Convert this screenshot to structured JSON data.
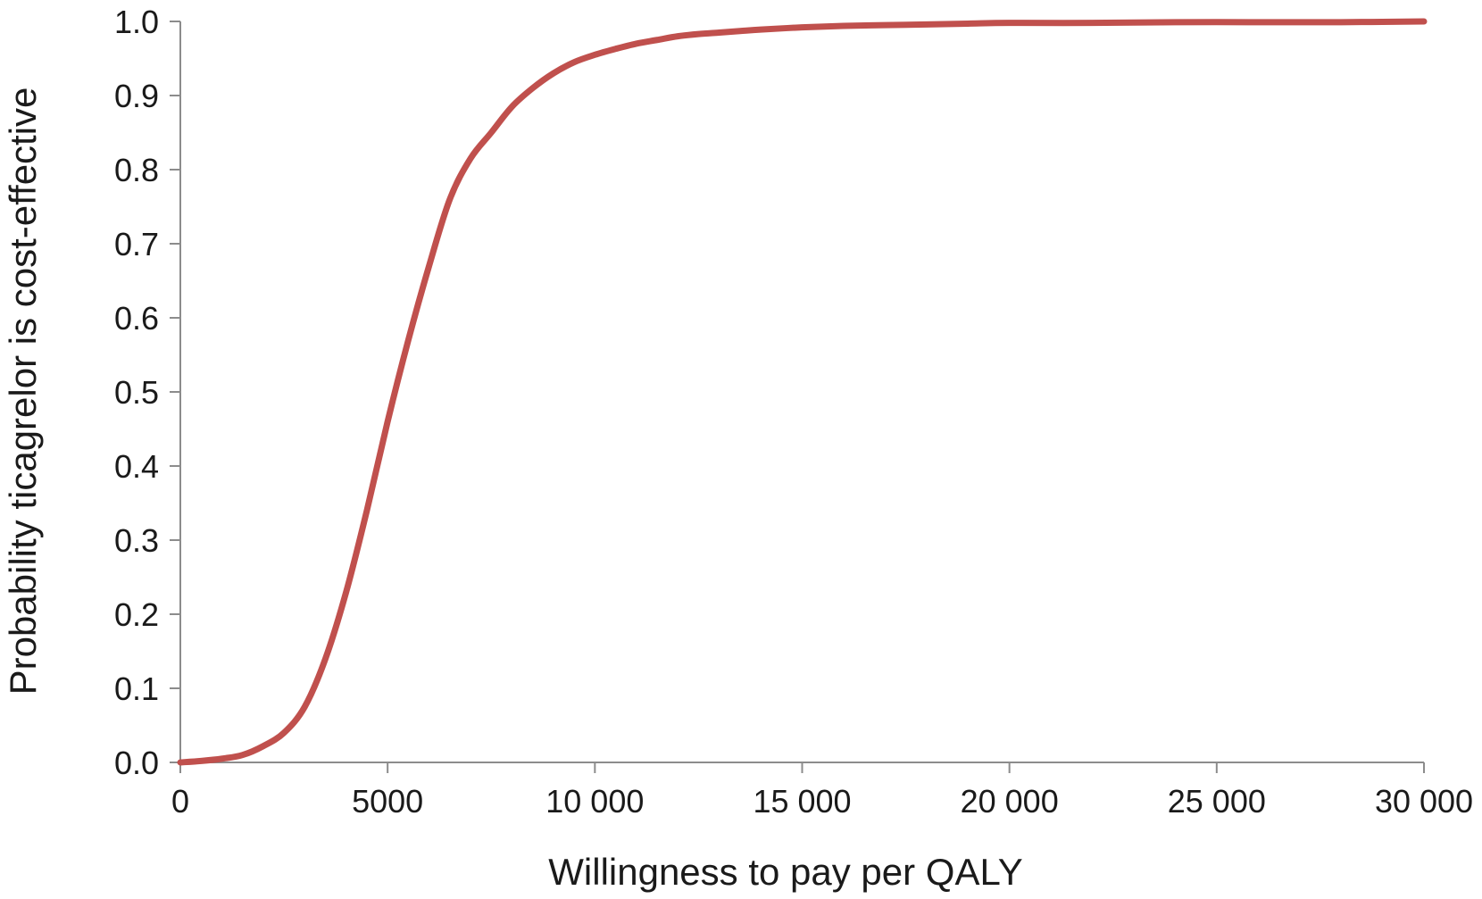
{
  "chart_data": {
    "type": "line",
    "title": "",
    "xlabel": "Willingness to pay per QALY",
    "ylabel": "Probability ticagrelor is cost-effective",
    "xlim": [
      0,
      30000
    ],
    "ylim": [
      0,
      1.0
    ],
    "x_ticks": [
      0,
      5000,
      10000,
      15000,
      20000,
      25000,
      30000
    ],
    "x_tick_labels": [
      "0",
      "5000",
      "10 000",
      "15 000",
      "20 000",
      "25 000",
      "30 000"
    ],
    "y_ticks": [
      0,
      0.1,
      0.2,
      0.3,
      0.4,
      0.5,
      0.6,
      0.7,
      0.8,
      0.9,
      1.0
    ],
    "y_tick_labels": [
      "0.0",
      "0.1",
      "0.2",
      "0.3",
      "0.4",
      "0.5",
      "0.6",
      "0.7",
      "0.8",
      "0.9",
      "1.0"
    ],
    "grid": false,
    "legend": "none",
    "series": [
      {
        "color": "#c0504d",
        "x": [
          0,
          500,
          1000,
          1500,
          2000,
          2500,
          3000,
          3500,
          4000,
          4500,
          5000,
          5500,
          6000,
          6500,
          7000,
          7500,
          8000,
          8500,
          9000,
          9500,
          10000,
          10500,
          11000,
          11500,
          12000,
          12500,
          13000,
          13500,
          14000,
          15000,
          16000,
          17000,
          18000,
          19000,
          20000,
          22000,
          24000,
          26000,
          28000,
          30000
        ],
        "y": [
          0.0,
          0.002,
          0.005,
          0.01,
          0.022,
          0.04,
          0.075,
          0.14,
          0.23,
          0.34,
          0.46,
          0.57,
          0.67,
          0.76,
          0.815,
          0.85,
          0.885,
          0.91,
          0.93,
          0.945,
          0.955,
          0.963,
          0.97,
          0.975,
          0.98,
          0.983,
          0.985,
          0.987,
          0.989,
          0.992,
          0.994,
          0.995,
          0.996,
          0.997,
          0.998,
          0.998,
          0.999,
          0.999,
          0.999,
          1.0
        ]
      }
    ]
  }
}
